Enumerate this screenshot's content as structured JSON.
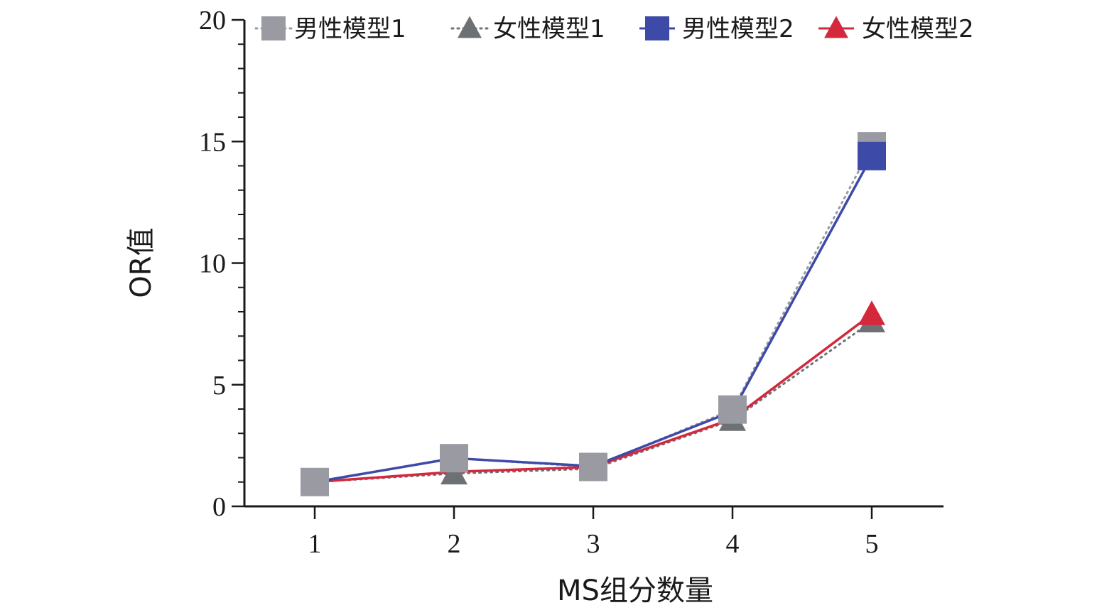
{
  "chart_data": {
    "type": "line",
    "title": "",
    "xlabel": "MS组分数量",
    "ylabel": "OR值",
    "categories": [
      "1",
      "2",
      "3",
      "4",
      "5"
    ],
    "x": [
      1,
      2,
      3,
      4,
      5
    ],
    "xlim": [
      0.5,
      5.5
    ],
    "ylim": [
      0,
      20
    ],
    "yticks": [
      0,
      5,
      10,
      15,
      20
    ],
    "grid": false,
    "legend_position": "top",
    "series": [
      {
        "name": "男性模型1",
        "values": [
          1.0,
          1.98,
          1.62,
          3.98,
          14.8
        ],
        "color": "#9a9aa2",
        "marker": "square",
        "line_style": "dotted"
      },
      {
        "name": "女性模型1",
        "values": [
          1.0,
          1.35,
          1.55,
          3.55,
          7.6
        ],
        "color": "#6d7174",
        "marker": "triangle",
        "line_style": "dotted"
      },
      {
        "name": "男性模型2",
        "values": [
          1.0,
          1.98,
          1.65,
          3.9,
          14.4
        ],
        "color": "#3d4aa8",
        "marker": "square",
        "line_style": "solid"
      },
      {
        "name": "女性模型2",
        "values": [
          1.0,
          1.42,
          1.62,
          3.6,
          7.9
        ],
        "color": "#d4283c",
        "marker": "triangle",
        "line_style": "solid"
      }
    ]
  }
}
